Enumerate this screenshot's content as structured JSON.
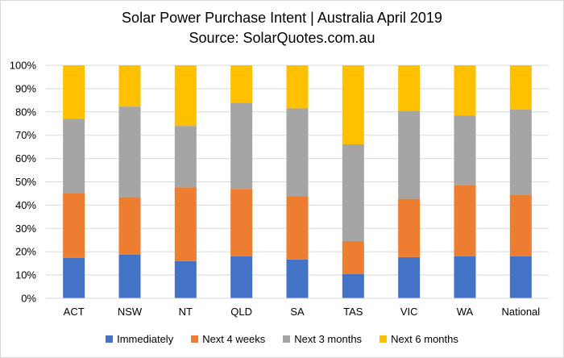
{
  "chart_data": {
    "type": "bar",
    "stacked": true,
    "title": "Solar Power Purchase Intent | Australia April 2019",
    "subtitle": "Source: SolarQuotes.com.au",
    "xlabel": "",
    "ylabel": "",
    "categories": [
      "ACT",
      "NSW",
      "NT",
      "QLD",
      "SA",
      "TAS",
      "VIC",
      "WA",
      "National"
    ],
    "ylim": [
      0,
      100
    ],
    "yticks": [
      "0%",
      "10%",
      "20%",
      "30%",
      "40%",
      "50%",
      "60%",
      "70%",
      "80%",
      "90%",
      "100%"
    ],
    "grid": true,
    "legend_position": "bottom",
    "series": [
      {
        "name": "Immediately",
        "color": "#4472c4",
        "values": [
          17.4,
          18.8,
          16.0,
          18.1,
          16.7,
          10.4,
          17.7,
          18.1,
          18.1
        ]
      },
      {
        "name": "Next 4 weeks",
        "color": "#ed7d31",
        "values": [
          27.8,
          24.6,
          31.6,
          28.9,
          27.2,
          14.2,
          25.0,
          30.6,
          26.2
        ]
      },
      {
        "name": "Next 3 months",
        "color": "#a5a5a5",
        "values": [
          31.9,
          38.9,
          26.4,
          37.0,
          37.6,
          41.5,
          37.8,
          29.8,
          36.8
        ]
      },
      {
        "name": "Next 6 months",
        "color": "#ffc000",
        "values": [
          22.9,
          17.7,
          26.0,
          16.0,
          18.5,
          33.9,
          19.5,
          21.5,
          18.9
        ]
      }
    ]
  }
}
